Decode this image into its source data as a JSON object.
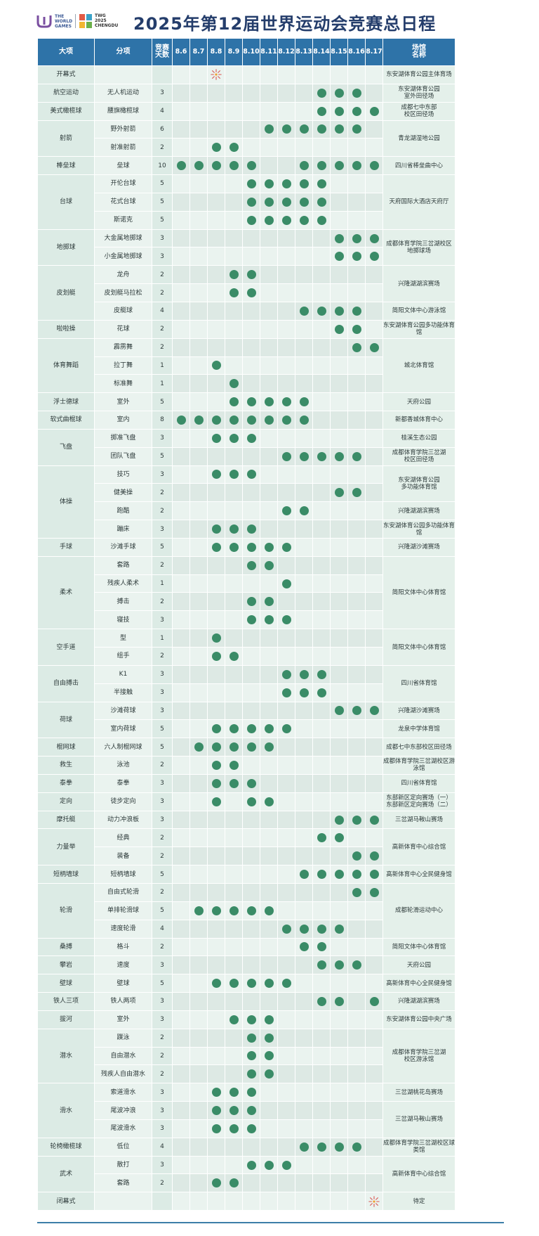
{
  "header": {
    "logo_world_games_lines": [
      "THE",
      "WORLD",
      "GAMES"
    ],
    "logo_chengdu_lines": [
      "TWG",
      "2025",
      "CHENGDU"
    ],
    "title": "2025年第12届世界运动会竞赛总日程"
  },
  "table": {
    "headers": {
      "event": "大项",
      "sub": "分项",
      "days": [
        "竞赛",
        "天数"
      ],
      "venue": [
        "场馆",
        "名称"
      ]
    },
    "dates": [
      "8.6",
      "8.7",
      "8.8",
      "8.9",
      "8.10",
      "8.11",
      "8.12",
      "8.13",
      "8.14",
      "8.15",
      "8.16",
      "8.17"
    ],
    "ceremony_icon": "fireworks-icon",
    "colors": {
      "header": "#2e73a8",
      "dot": "#3a8c67",
      "title": "#243d6b"
    },
    "groups": [
      {
        "event": "开幕式",
        "venues": [
          "东安湖体育公园主体育场"
        ],
        "rows": [
          {
            "sub": "",
            "days": "",
            "ceremony": 2
          }
        ]
      },
      {
        "event": "航空运动",
        "venues": [
          "东安湖体育公园\n室外田径场"
        ],
        "rows": [
          {
            "sub": "无人机运动",
            "days": "3",
            "dots": [
              8,
              9,
              10
            ]
          }
        ]
      },
      {
        "event": "美式橄榄球",
        "venues": [
          "成都七中东部\n校区田径场"
        ],
        "rows": [
          {
            "sub": "腰旗橄榄球",
            "days": "4",
            "dots": [
              8,
              9,
              10,
              11
            ]
          }
        ]
      },
      {
        "event": "射箭",
        "venues": [
          "青龙湖湿地公园"
        ],
        "rows": [
          {
            "sub": "野外射箭",
            "days": "6",
            "dots": [
              5,
              6,
              7,
              8,
              9,
              10
            ]
          },
          {
            "sub": "射准射箭",
            "days": "2",
            "dots": [
              2,
              3
            ]
          }
        ]
      },
      {
        "event": "棒垒球",
        "venues": [
          "四川省棒垒曲中心"
        ],
        "rows": [
          {
            "sub": "垒球",
            "days": "10",
            "dots": [
              0,
              1,
              2,
              3,
              4,
              7,
              8,
              9,
              10,
              11
            ]
          }
        ]
      },
      {
        "event": "台球",
        "venues": [
          "天府国际大酒店天府厅"
        ],
        "rows": [
          {
            "sub": "开伦台球",
            "days": "5",
            "dots": [
              4,
              5,
              6,
              7,
              8
            ]
          },
          {
            "sub": "花式台球",
            "days": "5",
            "dots": [
              4,
              5,
              6,
              7,
              8
            ]
          },
          {
            "sub": "斯诺克",
            "days": "5",
            "dots": [
              4,
              5,
              6,
              7,
              8
            ]
          }
        ]
      },
      {
        "event": "地掷球",
        "venues": [
          "成都体育学院三岔湖校区\n地掷球场"
        ],
        "rows": [
          {
            "sub": "大金属地掷球",
            "days": "3",
            "dots": [
              9,
              10,
              11
            ]
          },
          {
            "sub": "小金属地掷球",
            "days": "3",
            "dots": [
              9,
              10,
              11
            ]
          }
        ]
      },
      {
        "event": "皮划艇",
        "venue_spans": [
          {
            "text": "兴隆湖湖滨赛场",
            "rows": 2
          },
          {
            "text": "简阳文体中心游泳馆",
            "rows": 1
          }
        ],
        "rows": [
          {
            "sub": "龙舟",
            "days": "2",
            "dots": [
              3,
              4
            ]
          },
          {
            "sub": "皮划艇马拉松",
            "days": "2",
            "dots": [
              3,
              4
            ]
          },
          {
            "sub": "皮艇球",
            "days": "4",
            "dots": [
              7,
              8,
              9,
              10
            ]
          }
        ]
      },
      {
        "event": "啦啦操",
        "venues": [
          "东安湖体育公园多功能体育馆"
        ],
        "rows": [
          {
            "sub": "花球",
            "days": "2",
            "dots": [
              9,
              10
            ]
          }
        ]
      },
      {
        "event": "体育舞蹈",
        "venues": [
          "城北体育馆"
        ],
        "rows": [
          {
            "sub": "霹雳舞",
            "days": "2",
            "dots": [
              10,
              11
            ]
          },
          {
            "sub": "拉丁舞",
            "days": "1",
            "dots": [
              2
            ]
          },
          {
            "sub": "标准舞",
            "days": "1",
            "dots": [
              3
            ]
          }
        ]
      },
      {
        "event": "浮士德球",
        "venues": [
          "天府公园"
        ],
        "rows": [
          {
            "sub": "室外",
            "days": "5",
            "dots": [
              3,
              4,
              5,
              6,
              7
            ]
          }
        ]
      },
      {
        "event": "软式曲棍球",
        "venues": [
          "新都香城体育中心"
        ],
        "rows": [
          {
            "sub": "室内",
            "days": "8",
            "dots": [
              0,
              1,
              2,
              3,
              4,
              5,
              6,
              7
            ]
          }
        ]
      },
      {
        "event": "飞盘",
        "venue_spans": [
          {
            "text": "桂溪生态公园",
            "rows": 1
          },
          {
            "text": "成都体育学院三岔湖\n校区田径场",
            "rows": 1
          }
        ],
        "rows": [
          {
            "sub": "掷准飞盘",
            "days": "3",
            "dots": [
              2,
              3,
              4
            ]
          },
          {
            "sub": "团队飞盘",
            "days": "5",
            "dots": [
              6,
              7,
              8,
              9,
              10
            ]
          }
        ]
      },
      {
        "event": "体操",
        "venue_spans": [
          {
            "text": "东安湖体育公园\n多功能体育馆",
            "rows": 2
          },
          {
            "text": "兴隆湖湖滨赛场",
            "rows": 1
          },
          {
            "text": "东安湖体育公园多功能体育馆",
            "rows": 1
          }
        ],
        "rows": [
          {
            "sub": "技巧",
            "days": "3",
            "dots": [
              2,
              3,
              4
            ]
          },
          {
            "sub": "健美操",
            "days": "2",
            "dots": [
              9,
              10
            ]
          },
          {
            "sub": "跑酷",
            "days": "2",
            "dots": [
              6,
              7
            ]
          },
          {
            "sub": "蹦床",
            "days": "3",
            "dots": [
              2,
              3,
              4
            ]
          }
        ]
      },
      {
        "event": "手球",
        "venues": [
          "兴隆湖沙滩赛场"
        ],
        "rows": [
          {
            "sub": "沙滩手球",
            "days": "5",
            "dots": [
              2,
              3,
              4,
              5,
              6
            ]
          }
        ]
      },
      {
        "event": "柔术",
        "venues": [
          "简阳文体中心体育馆"
        ],
        "rows": [
          {
            "sub": "套路",
            "days": "2",
            "dots": [
              4,
              5
            ]
          },
          {
            "sub": "残疾人柔术",
            "days": "1",
            "dots": [
              6
            ]
          },
          {
            "sub": "搏击",
            "days": "2",
            "dots": [
              4,
              5
            ]
          },
          {
            "sub": "寝技",
            "days": "3",
            "dots": [
              4,
              5,
              6
            ]
          }
        ]
      },
      {
        "event": "空手道",
        "venues": [
          "简阳文体中心体育馆"
        ],
        "rows": [
          {
            "sub": "型",
            "days": "1",
            "dots": [
              2
            ]
          },
          {
            "sub": "组手",
            "days": "2",
            "dots": [
              2,
              3
            ]
          }
        ]
      },
      {
        "event": "自由搏击",
        "venues": [
          "四川省体育馆"
        ],
        "rows": [
          {
            "sub": "K1",
            "days": "3",
            "dots": [
              6,
              7,
              8
            ]
          },
          {
            "sub": "半接触",
            "days": "3",
            "dots": [
              6,
              7,
              8
            ]
          }
        ]
      },
      {
        "event": "荷球",
        "venue_spans": [
          {
            "text": "兴隆湖沙滩赛场",
            "rows": 1
          },
          {
            "text": "龙泉中学体育馆",
            "rows": 1
          }
        ],
        "rows": [
          {
            "sub": "沙滩荷球",
            "days": "3",
            "dots": [
              9,
              10,
              11
            ]
          },
          {
            "sub": "室内荷球",
            "days": "5",
            "dots": [
              2,
              3,
              4,
              5,
              6
            ]
          }
        ]
      },
      {
        "event": "棍网球",
        "venues": [
          "成都七中东部校区田径场"
        ],
        "rows": [
          {
            "sub": "六人制棍网球",
            "days": "5",
            "dots": [
              1,
              2,
              3,
              4,
              5
            ]
          }
        ]
      },
      {
        "event": "救生",
        "venues": [
          "成都体育学院三岔湖校区游泳馆"
        ],
        "rows": [
          {
            "sub": "泳池",
            "days": "2",
            "dots": [
              2,
              3
            ]
          }
        ]
      },
      {
        "event": "泰拳",
        "venues": [
          "四川省体育馆"
        ],
        "rows": [
          {
            "sub": "泰拳",
            "days": "3",
            "dots": [
              2,
              3,
              4
            ]
          }
        ]
      },
      {
        "event": "定向",
        "venues": [
          "东部新区定向赛场（一）\n东部新区定向赛场（二）"
        ],
        "rows": [
          {
            "sub": "徒步定向",
            "days": "3",
            "dots": [
              2,
              4,
              5
            ]
          }
        ]
      },
      {
        "event": "摩托艇",
        "venues": [
          "三岔湖马鞍山赛场"
        ],
        "rows": [
          {
            "sub": "动力冲浪板",
            "days": "3",
            "dots": [
              9,
              10,
              11
            ]
          }
        ]
      },
      {
        "event": "力量举",
        "venues": [
          "高新体育中心综合馆"
        ],
        "rows": [
          {
            "sub": "经典",
            "days": "2",
            "dots": [
              8,
              9
            ]
          },
          {
            "sub": "装备",
            "days": "2",
            "dots": [
              10,
              11
            ]
          }
        ]
      },
      {
        "event": "短柄墙球",
        "venues": [
          "高新体育中心全民健身馆"
        ],
        "rows": [
          {
            "sub": "短柄墙球",
            "days": "5",
            "dots": [
              7,
              8,
              9,
              10,
              11
            ]
          }
        ]
      },
      {
        "event": "轮滑",
        "venues": [
          "成都轮滑运动中心"
        ],
        "rows": [
          {
            "sub": "自由式轮滑",
            "days": "2",
            "dots": [
              10,
              11
            ]
          },
          {
            "sub": "单排轮滑球",
            "days": "5",
            "dots": [
              1,
              2,
              3,
              4,
              5
            ]
          },
          {
            "sub": "速度轮滑",
            "days": "4",
            "dots": [
              6,
              7,
              8,
              9
            ]
          }
        ]
      },
      {
        "event": "桑搏",
        "venues": [
          "简阳文体中心体育馆"
        ],
        "rows": [
          {
            "sub": "格斗",
            "days": "2",
            "dots": [
              7,
              8
            ]
          }
        ]
      },
      {
        "event": "攀岩",
        "venues": [
          "天府公园"
        ],
        "rows": [
          {
            "sub": "速度",
            "days": "3",
            "dots": [
              8,
              9,
              10
            ]
          }
        ]
      },
      {
        "event": "壁球",
        "venues": [
          "高新体育中心全民健身馆"
        ],
        "rows": [
          {
            "sub": "壁球",
            "days": "5",
            "dots": [
              2,
              3,
              4,
              5,
              6
            ]
          }
        ]
      },
      {
        "event": "铁人三项",
        "venues": [
          "兴隆湖湖滨赛场"
        ],
        "rows": [
          {
            "sub": "铁人两项",
            "days": "3",
            "dots": [
              8,
              9,
              11
            ]
          }
        ]
      },
      {
        "event": "拔河",
        "venues": [
          "东安湖体育公园中央广场"
        ],
        "rows": [
          {
            "sub": "室外",
            "days": "3",
            "dots": [
              3,
              4,
              5
            ]
          }
        ]
      },
      {
        "event": "潜水",
        "venues": [
          "成都体育学院三岔湖\n校区游泳馆"
        ],
        "rows": [
          {
            "sub": "蹼泳",
            "days": "2",
            "dots": [
              4,
              5
            ]
          },
          {
            "sub": "自由潜水",
            "days": "2",
            "dots": [
              4,
              5
            ]
          },
          {
            "sub": "残疾人自由潜水",
            "days": "2",
            "dots": [
              4,
              5
            ]
          }
        ]
      },
      {
        "event": "滑水",
        "venue_spans": [
          {
            "text": "三岔湖桃花岛赛场",
            "rows": 1
          },
          {
            "text": "三岔湖马鞍山赛场",
            "rows": 2
          }
        ],
        "rows": [
          {
            "sub": "索道滑水",
            "days": "3",
            "dots": [
              2,
              3,
              4
            ]
          },
          {
            "sub": "尾波冲浪",
            "days": "3",
            "dots": [
              2,
              3,
              4
            ]
          },
          {
            "sub": "尾波滑水",
            "days": "3",
            "dots": [
              2,
              3,
              4
            ]
          }
        ]
      },
      {
        "event": "轮椅橄榄球",
        "venues": [
          "成都体育学院三岔湖校区球类馆"
        ],
        "rows": [
          {
            "sub": "低位",
            "days": "4",
            "dots": [
              7,
              8,
              9,
              10
            ]
          }
        ]
      },
      {
        "event": "武术",
        "venues": [
          "高新体育中心综合馆"
        ],
        "rows": [
          {
            "sub": "散打",
            "days": "3",
            "dots": [
              4,
              5,
              6
            ]
          },
          {
            "sub": "套路",
            "days": "2",
            "dots": [
              2,
              3
            ]
          }
        ]
      },
      {
        "event": "闭幕式",
        "venues": [
          "待定"
        ],
        "rows": [
          {
            "sub": "",
            "days": "",
            "ceremony": 11
          }
        ]
      }
    ]
  }
}
